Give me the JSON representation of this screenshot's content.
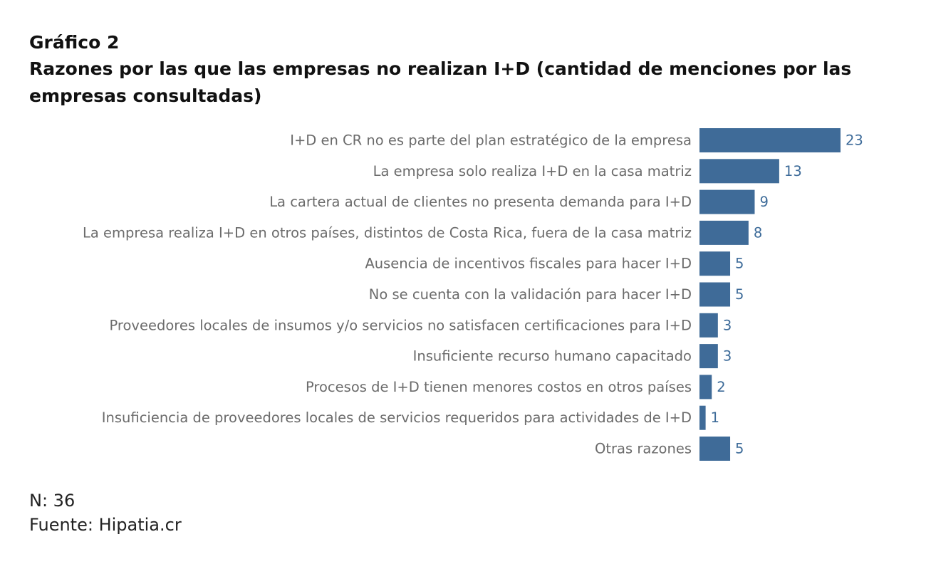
{
  "header": {
    "number": "Gráfico 2",
    "title": "Razones por las que las empresas no realizan  I+D (cantidad de menciones por las empresas consultadas)"
  },
  "chart_data": {
    "type": "bar",
    "orientation": "horizontal",
    "categories": [
      "I+D en CR no es parte del plan estratégico de la empresa",
      "La empresa solo realiza I+D en la casa matriz",
      "La cartera actual de clientes no presenta demanda para I+D",
      "La empresa realiza I+D en otros países, distintos de Costa Rica, fuera de la casa matriz",
      "Ausencia de incentivos fiscales para hacer I+D",
      "No se cuenta con la validación para hacer I+D",
      "Proveedores locales de insumos y/o servicios no satisfacen certificaciones para I+D",
      "Insuficiente recurso humano capacitado",
      "Procesos de I+D tienen menores costos en otros países",
      "Insuficiencia de proveedores locales de servicios requeridos para actividades de I+D",
      "Otras razones"
    ],
    "values": [
      23,
      13,
      9,
      8,
      5,
      5,
      3,
      3,
      2,
      1,
      5
    ],
    "xlim": [
      0,
      23
    ],
    "grid": false,
    "legend": "none",
    "bar_color": "#3f6b98",
    "value_label_color": "#3d6b99",
    "category_label_color": "#6b6b6b"
  },
  "footer": {
    "n": "N: 36",
    "source": "Fuente: Hipatia.cr"
  }
}
